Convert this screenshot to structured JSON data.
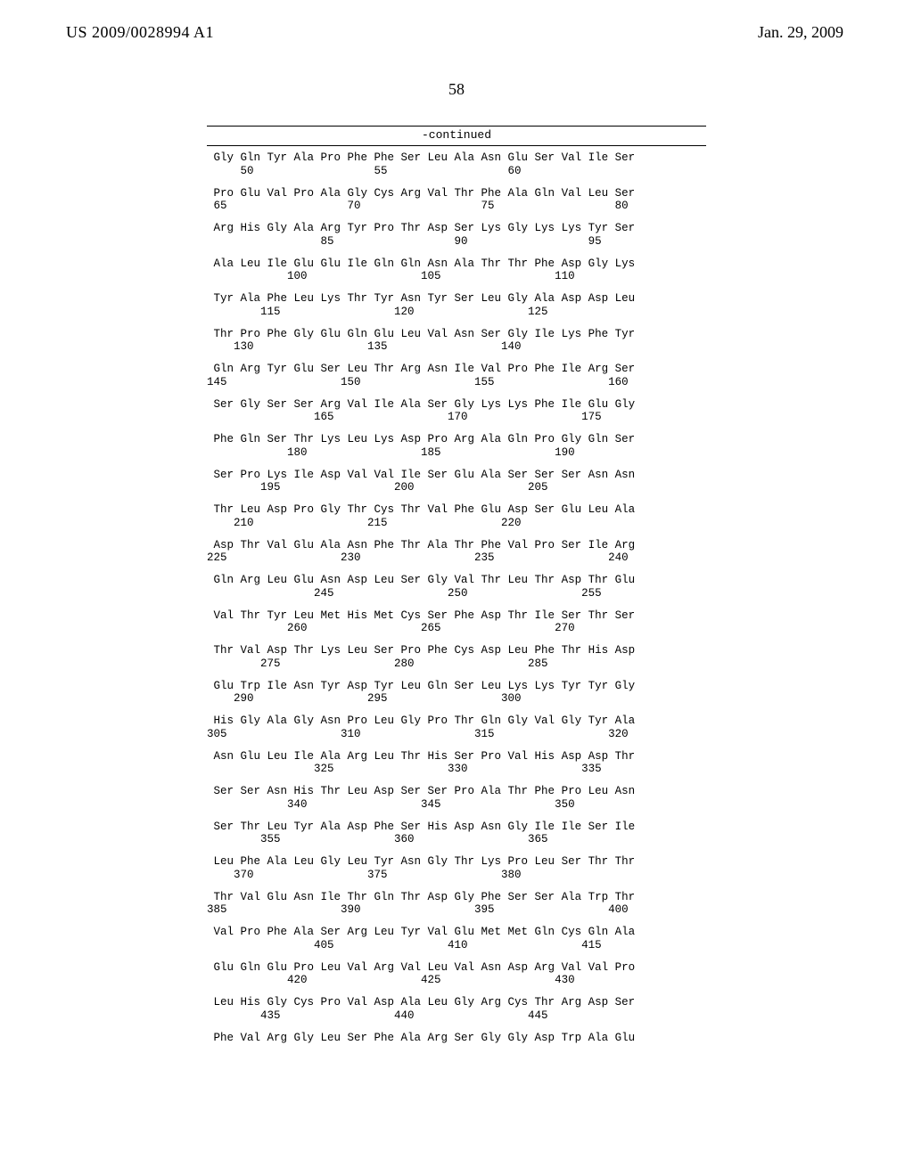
{
  "header": {
    "left": "US 2009/0028994 A1",
    "right": "Jan. 29, 2009",
    "pagenum": "58",
    "continued": "-continued"
  },
  "sequence": {
    "residue_width": 4,
    "entries": [
      {
        "residues": [
          "Gly",
          "Gln",
          "Tyr",
          "Ala",
          "Pro",
          "Phe",
          "Phe",
          "Ser",
          "Leu",
          "Ala",
          "Asn",
          "Glu",
          "Ser",
          "Val",
          "Ile",
          "Ser"
        ],
        "numbers": {
          "1": 50,
          "6": 55,
          "11": 60
        }
      },
      {
        "residues": [
          "Pro",
          "Glu",
          "Val",
          "Pro",
          "Ala",
          "Gly",
          "Cys",
          "Arg",
          "Val",
          "Thr",
          "Phe",
          "Ala",
          "Gln",
          "Val",
          "Leu",
          "Ser"
        ],
        "numbers": {
          "0": 65,
          "5": 70,
          "10": 75,
          "15": 80
        }
      },
      {
        "residues": [
          "Arg",
          "His",
          "Gly",
          "Ala",
          "Arg",
          "Tyr",
          "Pro",
          "Thr",
          "Asp",
          "Ser",
          "Lys",
          "Gly",
          "Lys",
          "Lys",
          "Tyr",
          "Ser"
        ],
        "numbers": {
          "4": 85,
          "9": 90,
          "14": 95
        }
      },
      {
        "residues": [
          "Ala",
          "Leu",
          "Ile",
          "Glu",
          "Glu",
          "Ile",
          "Gln",
          "Gln",
          "Asn",
          "Ala",
          "Thr",
          "Thr",
          "Phe",
          "Asp",
          "Gly",
          "Lys"
        ],
        "numbers": {
          "3": 100,
          "8": 105,
          "13": 110
        }
      },
      {
        "residues": [
          "Tyr",
          "Ala",
          "Phe",
          "Leu",
          "Lys",
          "Thr",
          "Tyr",
          "Asn",
          "Tyr",
          "Ser",
          "Leu",
          "Gly",
          "Ala",
          "Asp",
          "Asp",
          "Leu"
        ],
        "numbers": {
          "2": 115,
          "7": 120,
          "12": 125
        }
      },
      {
        "residues": [
          "Thr",
          "Pro",
          "Phe",
          "Gly",
          "Glu",
          "Gln",
          "Glu",
          "Leu",
          "Val",
          "Asn",
          "Ser",
          "Gly",
          "Ile",
          "Lys",
          "Phe",
          "Tyr"
        ],
        "numbers": {
          "1": 130,
          "6": 135,
          "11": 140
        }
      },
      {
        "residues": [
          "Gln",
          "Arg",
          "Tyr",
          "Glu",
          "Ser",
          "Leu",
          "Thr",
          "Arg",
          "Asn",
          "Ile",
          "Val",
          "Pro",
          "Phe",
          "Ile",
          "Arg",
          "Ser"
        ],
        "numbers": {
          "0": 145,
          "5": 150,
          "10": 155,
          "15": 160
        }
      },
      {
        "residues": [
          "Ser",
          "Gly",
          "Ser",
          "Ser",
          "Arg",
          "Val",
          "Ile",
          "Ala",
          "Ser",
          "Gly",
          "Lys",
          "Lys",
          "Phe",
          "Ile",
          "Glu",
          "Gly"
        ],
        "numbers": {
          "4": 165,
          "9": 170,
          "14": 175
        }
      },
      {
        "residues": [
          "Phe",
          "Gln",
          "Ser",
          "Thr",
          "Lys",
          "Leu",
          "Lys",
          "Asp",
          "Pro",
          "Arg",
          "Ala",
          "Gln",
          "Pro",
          "Gly",
          "Gln",
          "Ser"
        ],
        "numbers": {
          "3": 180,
          "8": 185,
          "13": 190
        }
      },
      {
        "residues": [
          "Ser",
          "Pro",
          "Lys",
          "Ile",
          "Asp",
          "Val",
          "Val",
          "Ile",
          "Ser",
          "Glu",
          "Ala",
          "Ser",
          "Ser",
          "Ser",
          "Asn",
          "Asn"
        ],
        "numbers": {
          "2": 195,
          "7": 200,
          "12": 205
        }
      },
      {
        "residues": [
          "Thr",
          "Leu",
          "Asp",
          "Pro",
          "Gly",
          "Thr",
          "Cys",
          "Thr",
          "Val",
          "Phe",
          "Glu",
          "Asp",
          "Ser",
          "Glu",
          "Leu",
          "Ala"
        ],
        "numbers": {
          "1": 210,
          "6": 215,
          "11": 220
        }
      },
      {
        "residues": [
          "Asp",
          "Thr",
          "Val",
          "Glu",
          "Ala",
          "Asn",
          "Phe",
          "Thr",
          "Ala",
          "Thr",
          "Phe",
          "Val",
          "Pro",
          "Ser",
          "Ile",
          "Arg"
        ],
        "numbers": {
          "0": 225,
          "5": 230,
          "10": 235,
          "15": 240
        }
      },
      {
        "residues": [
          "Gln",
          "Arg",
          "Leu",
          "Glu",
          "Asn",
          "Asp",
          "Leu",
          "Ser",
          "Gly",
          "Val",
          "Thr",
          "Leu",
          "Thr",
          "Asp",
          "Thr",
          "Glu"
        ],
        "numbers": {
          "4": 245,
          "9": 250,
          "14": 255
        }
      },
      {
        "residues": [
          "Val",
          "Thr",
          "Tyr",
          "Leu",
          "Met",
          "His",
          "Met",
          "Cys",
          "Ser",
          "Phe",
          "Asp",
          "Thr",
          "Ile",
          "Ser",
          "Thr",
          "Ser"
        ],
        "numbers": {
          "3": 260,
          "8": 265,
          "13": 270
        }
      },
      {
        "residues": [
          "Thr",
          "Val",
          "Asp",
          "Thr",
          "Lys",
          "Leu",
          "Ser",
          "Pro",
          "Phe",
          "Cys",
          "Asp",
          "Leu",
          "Phe",
          "Thr",
          "His",
          "Asp"
        ],
        "numbers": {
          "2": 275,
          "7": 280,
          "12": 285
        }
      },
      {
        "residues": [
          "Glu",
          "Trp",
          "Ile",
          "Asn",
          "Tyr",
          "Asp",
          "Tyr",
          "Leu",
          "Gln",
          "Ser",
          "Leu",
          "Lys",
          "Lys",
          "Tyr",
          "Tyr",
          "Gly"
        ],
        "numbers": {
          "1": 290,
          "6": 295,
          "11": 300
        }
      },
      {
        "residues": [
          "His",
          "Gly",
          "Ala",
          "Gly",
          "Asn",
          "Pro",
          "Leu",
          "Gly",
          "Pro",
          "Thr",
          "Gln",
          "Gly",
          "Val",
          "Gly",
          "Tyr",
          "Ala"
        ],
        "numbers": {
          "0": 305,
          "5": 310,
          "10": 315,
          "15": 320
        }
      },
      {
        "residues": [
          "Asn",
          "Glu",
          "Leu",
          "Ile",
          "Ala",
          "Arg",
          "Leu",
          "Thr",
          "His",
          "Ser",
          "Pro",
          "Val",
          "His",
          "Asp",
          "Asp",
          "Thr"
        ],
        "numbers": {
          "4": 325,
          "9": 330,
          "14": 335
        }
      },
      {
        "residues": [
          "Ser",
          "Ser",
          "Asn",
          "His",
          "Thr",
          "Leu",
          "Asp",
          "Ser",
          "Ser",
          "Pro",
          "Ala",
          "Thr",
          "Phe",
          "Pro",
          "Leu",
          "Asn"
        ],
        "numbers": {
          "3": 340,
          "8": 345,
          "13": 350
        }
      },
      {
        "residues": [
          "Ser",
          "Thr",
          "Leu",
          "Tyr",
          "Ala",
          "Asp",
          "Phe",
          "Ser",
          "His",
          "Asp",
          "Asn",
          "Gly",
          "Ile",
          "Ile",
          "Ser",
          "Ile"
        ],
        "numbers": {
          "2": 355,
          "7": 360,
          "12": 365
        }
      },
      {
        "residues": [
          "Leu",
          "Phe",
          "Ala",
          "Leu",
          "Gly",
          "Leu",
          "Tyr",
          "Asn",
          "Gly",
          "Thr",
          "Lys",
          "Pro",
          "Leu",
          "Ser",
          "Thr",
          "Thr"
        ],
        "numbers": {
          "1": 370,
          "6": 375,
          "11": 380
        }
      },
      {
        "residues": [
          "Thr",
          "Val",
          "Glu",
          "Asn",
          "Ile",
          "Thr",
          "Gln",
          "Thr",
          "Asp",
          "Gly",
          "Phe",
          "Ser",
          "Ser",
          "Ala",
          "Trp",
          "Thr"
        ],
        "numbers": {
          "0": 385,
          "5": 390,
          "10": 395,
          "15": 400
        }
      },
      {
        "residues": [
          "Val",
          "Pro",
          "Phe",
          "Ala",
          "Ser",
          "Arg",
          "Leu",
          "Tyr",
          "Val",
          "Glu",
          "Met",
          "Met",
          "Gln",
          "Cys",
          "Gln",
          "Ala"
        ],
        "numbers": {
          "4": 405,
          "9": 410,
          "14": 415
        }
      },
      {
        "residues": [
          "Glu",
          "Gln",
          "Glu",
          "Pro",
          "Leu",
          "Val",
          "Arg",
          "Val",
          "Leu",
          "Val",
          "Asn",
          "Asp",
          "Arg",
          "Val",
          "Val",
          "Pro"
        ],
        "numbers": {
          "3": 420,
          "8": 425,
          "13": 430
        }
      },
      {
        "residues": [
          "Leu",
          "His",
          "Gly",
          "Cys",
          "Pro",
          "Val",
          "Asp",
          "Ala",
          "Leu",
          "Gly",
          "Arg",
          "Cys",
          "Thr",
          "Arg",
          "Asp",
          "Ser"
        ],
        "numbers": {
          "2": 435,
          "7": 440,
          "12": 445
        }
      },
      {
        "residues": [
          "Phe",
          "Val",
          "Arg",
          "Gly",
          "Leu",
          "Ser",
          "Phe",
          "Ala",
          "Arg",
          "Ser",
          "Gly",
          "Gly",
          "Asp",
          "Trp",
          "Ala",
          "Glu"
        ],
        "numbers": {}
      }
    ]
  }
}
